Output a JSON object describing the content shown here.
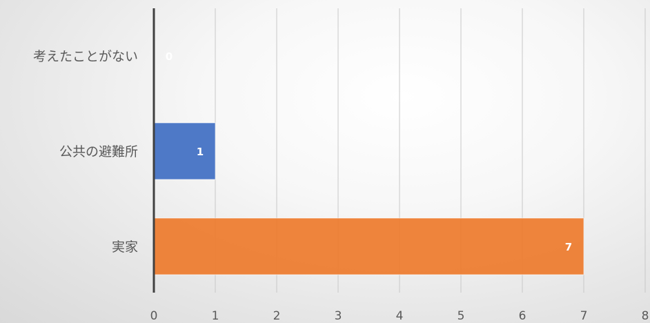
{
  "chart_data": {
    "type": "bar",
    "orientation": "horizontal",
    "categories": [
      "考えたことがない",
      "公共の避難所",
      "実家"
    ],
    "values": [
      0,
      1,
      7
    ],
    "bar_colors": [
      "#4472c4",
      "#4472c4",
      "#ed7d31"
    ],
    "xlim": [
      0,
      8
    ],
    "xticks": [
      "0",
      "1",
      "2",
      "3",
      "4",
      "5",
      "6",
      "7",
      "8"
    ],
    "data_labels": [
      "0",
      "1",
      "7"
    ],
    "grid": true,
    "title": "",
    "xlabel": "",
    "ylabel": ""
  }
}
